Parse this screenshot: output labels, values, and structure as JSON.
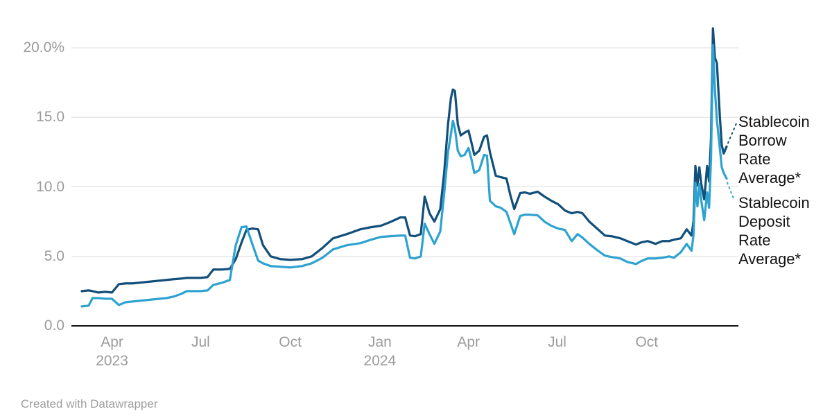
{
  "colors": {
    "borrow_line": "#124F7A",
    "deposit_line": "#2EA3D0",
    "grid": "#DDDDDD",
    "baseline": "#111111",
    "tick_text": "#9B9B9B",
    "annotation_text": "#141414",
    "credit_text": "#9E9E9E",
    "background": "#FFFFFF"
  },
  "axis": {
    "y_ticks": [
      {
        "label": "0.0",
        "value": 0
      },
      {
        "label": "5.0",
        "value": 5
      },
      {
        "label": "10.0",
        "value": 10
      },
      {
        "label": "15.0",
        "value": 15
      },
      {
        "label": "20.0%",
        "value": 20
      }
    ],
    "x_ticks": [
      {
        "label": "Apr",
        "year": "2023",
        "date": "2023-04-01"
      },
      {
        "label": "Jul",
        "year": "",
        "date": "2023-07-01"
      },
      {
        "label": "Oct",
        "year": "",
        "date": "2023-10-01"
      },
      {
        "label": "Jan",
        "year": "2024",
        "date": "2024-01-01"
      },
      {
        "label": "Apr",
        "year": "",
        "date": "2024-04-01"
      },
      {
        "label": "Jul",
        "year": "",
        "date": "2024-07-01"
      },
      {
        "label": "Oct",
        "year": "",
        "date": "2024-10-01"
      }
    ]
  },
  "annotations": {
    "borrow": {
      "lines": [
        "Stablecoin",
        "Borrow",
        "Rate",
        "Average*"
      ]
    },
    "deposit": {
      "lines": [
        "Stablecoin",
        "Deposit",
        "Rate",
        "Average*"
      ]
    }
  },
  "footer": {
    "credit": "Created with Datawrapper"
  },
  "chart_data": {
    "type": "line",
    "title": "",
    "xlabel": "",
    "ylabel": "",
    "unit": "%",
    "ylim": [
      0,
      22
    ],
    "grid": true,
    "legend_position": "right-annotations",
    "x_range": [
      "2023-03-01",
      "2024-12-22"
    ],
    "x": [
      "2023-03-01",
      "2023-03-08",
      "2023-03-12",
      "2023-03-18",
      "2023-03-25",
      "2023-04-01",
      "2023-04-08",
      "2023-04-15",
      "2023-04-22",
      "2023-04-29",
      "2023-05-06",
      "2023-05-13",
      "2023-05-20",
      "2023-05-27",
      "2023-06-03",
      "2023-06-11",
      "2023-06-17",
      "2023-06-24",
      "2023-07-01",
      "2023-07-08",
      "2023-07-14",
      "2023-07-23",
      "2023-07-31",
      "2023-08-06",
      "2023-08-12",
      "2023-08-17",
      "2023-08-23",
      "2023-08-29",
      "2023-09-03",
      "2023-09-11",
      "2023-09-21",
      "2023-10-01",
      "2023-10-13",
      "2023-10-23",
      "2023-11-03",
      "2023-11-14",
      "2023-11-28",
      "2023-12-12",
      "2023-12-23",
      "2024-01-02",
      "2024-01-11",
      "2024-01-22",
      "2024-01-27",
      "2024-02-01",
      "2024-02-06",
      "2024-02-12",
      "2024-02-16",
      "2024-02-21",
      "2024-02-26",
      "2024-03-03",
      "2024-03-07",
      "2024-03-11",
      "2024-03-14",
      "2024-03-16",
      "2024-03-18",
      "2024-03-21",
      "2024-03-24",
      "2024-03-28",
      "2024-04-01",
      "2024-04-04",
      "2024-04-07",
      "2024-04-12",
      "2024-04-17",
      "2024-04-20",
      "2024-04-23",
      "2024-04-29",
      "2024-05-04",
      "2024-05-10",
      "2024-05-14",
      "2024-05-18",
      "2024-05-24",
      "2024-05-29",
      "2024-06-03",
      "2024-06-11",
      "2024-06-18",
      "2024-06-25",
      "2024-07-02",
      "2024-07-09",
      "2024-07-16",
      "2024-07-22",
      "2024-07-27",
      "2024-08-03",
      "2024-08-11",
      "2024-08-19",
      "2024-08-26",
      "2024-09-04",
      "2024-09-11",
      "2024-09-20",
      "2024-09-25",
      "2024-10-02",
      "2024-10-10",
      "2024-10-17",
      "2024-10-24",
      "2024-10-29",
      "2024-11-05",
      "2024-11-11",
      "2024-11-16",
      "2024-11-18",
      "2024-11-20",
      "2024-11-22",
      "2024-11-24",
      "2024-11-26",
      "2024-11-29",
      "2024-12-02",
      "2024-12-04",
      "2024-12-06",
      "2024-12-08",
      "2024-12-10",
      "2024-12-12",
      "2024-12-15",
      "2024-12-17",
      "2024-12-19",
      "2024-12-22"
    ],
    "series": [
      {
        "name": "Stablecoin Borrow Rate Average*",
        "color": "#124F7A",
        "values": [
          2.5,
          2.55,
          2.5,
          2.4,
          2.45,
          2.4,
          3.0,
          3.05,
          3.05,
          3.1,
          3.15,
          3.2,
          3.25,
          3.3,
          3.35,
          3.4,
          3.45,
          3.45,
          3.45,
          3.5,
          4.05,
          4.05,
          4.1,
          4.8,
          6.0,
          6.9,
          7.0,
          6.95,
          5.8,
          5.0,
          4.8,
          4.75,
          4.8,
          5.0,
          5.6,
          6.3,
          6.6,
          6.95,
          7.1,
          7.2,
          7.45,
          7.8,
          7.8,
          6.5,
          6.45,
          6.6,
          9.3,
          8.1,
          7.5,
          8.4,
          11.0,
          14.5,
          16.4,
          17.0,
          16.9,
          14.5,
          13.7,
          13.9,
          14.05,
          13.2,
          12.3,
          12.6,
          13.6,
          13.7,
          12.5,
          10.8,
          10.7,
          10.6,
          9.4,
          8.4,
          9.55,
          9.6,
          9.5,
          9.65,
          9.3,
          9.0,
          8.75,
          8.3,
          8.1,
          8.2,
          8.1,
          7.5,
          7.0,
          6.5,
          6.45,
          6.3,
          6.1,
          5.85,
          6.0,
          6.1,
          5.9,
          6.1,
          6.1,
          6.2,
          6.3,
          6.95,
          6.5,
          7.5,
          11.5,
          10.1,
          11.4,
          10.2,
          9.1,
          11.5,
          10.4,
          13.5,
          21.4,
          19.3,
          18.9,
          15.1,
          13.0,
          12.4,
          12.9
        ]
      },
      {
        "name": "Stablecoin Deposit Rate Average*",
        "color": "#2EA3D0",
        "values": [
          1.4,
          1.45,
          2.0,
          2.0,
          1.95,
          1.95,
          1.5,
          1.7,
          1.75,
          1.8,
          1.85,
          1.9,
          1.95,
          2.0,
          2.1,
          2.3,
          2.5,
          2.5,
          2.5,
          2.55,
          2.95,
          3.1,
          3.3,
          5.8,
          7.1,
          7.15,
          5.9,
          4.7,
          4.5,
          4.3,
          4.25,
          4.2,
          4.3,
          4.5,
          4.9,
          5.5,
          5.8,
          5.95,
          6.2,
          6.4,
          6.45,
          6.5,
          6.5,
          4.9,
          4.85,
          5.0,
          7.35,
          6.6,
          5.9,
          6.8,
          9.5,
          12.5,
          13.8,
          14.75,
          14.2,
          12.6,
          12.2,
          12.3,
          12.8,
          12.0,
          11.0,
          11.2,
          12.3,
          12.25,
          9.0,
          8.6,
          8.5,
          8.2,
          7.4,
          6.6,
          7.9,
          8.0,
          8.0,
          7.95,
          7.5,
          7.2,
          7.0,
          6.9,
          6.1,
          6.6,
          6.35,
          5.9,
          5.45,
          5.05,
          4.95,
          4.85,
          4.6,
          4.45,
          4.65,
          4.85,
          4.85,
          4.9,
          5.0,
          4.9,
          5.3,
          5.9,
          5.4,
          6.5,
          10.3,
          8.6,
          10.2,
          9.0,
          7.6,
          9.6,
          8.5,
          12.0,
          20.2,
          17.0,
          14.8,
          12.8,
          11.4,
          11.0,
          10.6
        ]
      }
    ]
  }
}
